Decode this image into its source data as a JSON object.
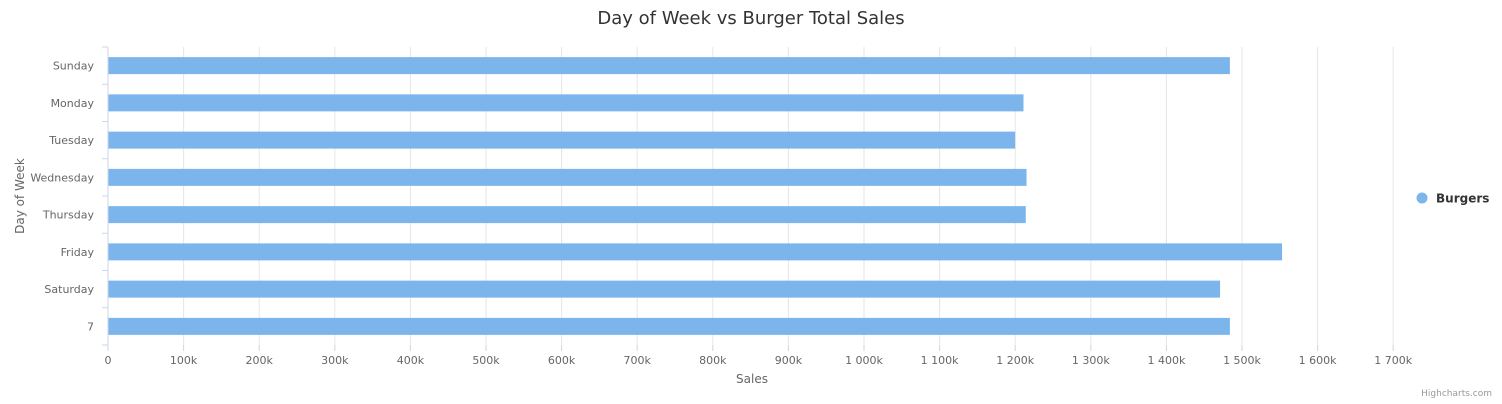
{
  "chart_data": {
    "type": "bar",
    "orientation": "horizontal",
    "title": "Day of Week vs Burger Total Sales",
    "xlabel": "Day of Week",
    "ylabel": "Sales",
    "categories": [
      "Sunday",
      "Monday",
      "Tuesday",
      "Wednesday",
      "Thursday",
      "Friday",
      "Saturday",
      "7"
    ],
    "series": [
      {
        "name": "Burgers",
        "color": "#7cb5ec",
        "values": [
          1484000,
          1211000,
          1200000,
          1215000,
          1214000,
          1553000,
          1471000,
          1484000
        ]
      }
    ],
    "ylim": [
      0,
      1750000
    ],
    "tick_values": [
      0,
      100000,
      200000,
      300000,
      400000,
      500000,
      600000,
      700000,
      800000,
      900000,
      1000000,
      1100000,
      1200000,
      1300000,
      1400000,
      1500000,
      1600000,
      1700000
    ],
    "tick_labels": [
      "0",
      "100k",
      "200k",
      "300k",
      "400k",
      "500k",
      "600k",
      "700k",
      "800k",
      "900k",
      "1 000k",
      "1 100k",
      "1 200k",
      "1 300k",
      "1 400k",
      "1 500k",
      "1 600k",
      "1 700k"
    ],
    "grid": true,
    "legend_position": "right"
  },
  "credits": "Highcharts.com"
}
